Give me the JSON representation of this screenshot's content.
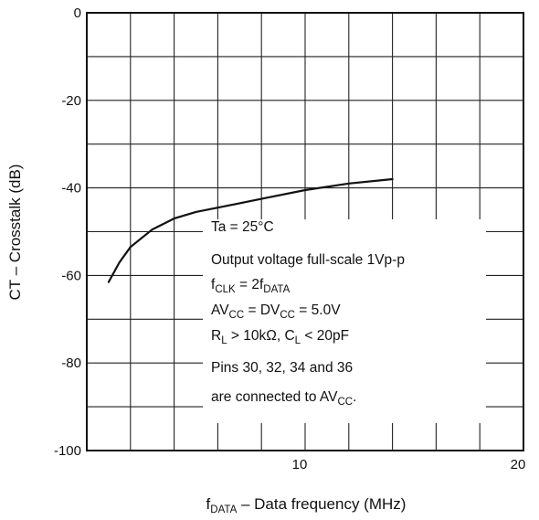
{
  "chart_data": {
    "type": "line",
    "title": "",
    "xlabel": {
      "main": "f",
      "sub": "DATA",
      "rest": " – Data frequency (MHz)"
    },
    "ylabel": "CT – Crosstalk (dB)",
    "xlim": [
      0,
      20
    ],
    "ylim": [
      -100,
      0
    ],
    "x_ticks": [
      {
        "value": 10,
        "label": "10"
      },
      {
        "value": 20,
        "label": "20"
      }
    ],
    "y_ticks": [
      {
        "value": 0,
        "label": "0"
      },
      {
        "value": -20,
        "label": "-20"
      },
      {
        "value": -40,
        "label": "-40"
      },
      {
        "value": -60,
        "label": "-60"
      },
      {
        "value": -80,
        "label": "-80"
      },
      {
        "value": -100,
        "label": "-100"
      }
    ],
    "grid": true,
    "series": [
      {
        "x": [
          1.0,
          1.5,
          2.0,
          3.0,
          4.0,
          5.0,
          6.0,
          8.0,
          10.0,
          12.0,
          14.0
        ],
        "y": [
          -61.5,
          -57.0,
          -53.5,
          -49.5,
          -47.0,
          -45.5,
          -44.5,
          -42.5,
          -40.5,
          -39.0,
          -38.0
        ]
      }
    ],
    "annotations": [
      [
        {
          "t": "Ta = 25°C"
        }
      ],
      [
        {
          "t": "Output voltage full-scale 1Vp-p"
        }
      ],
      [
        {
          "t": "f"
        },
        {
          "t": "CLK",
          "sub": true
        },
        {
          "t": " = 2f"
        },
        {
          "t": "DATA",
          "sub": true
        }
      ],
      [
        {
          "t": "AV"
        },
        {
          "t": "CC",
          "sub": true
        },
        {
          "t": " = DV"
        },
        {
          "t": "CC",
          "sub": true
        },
        {
          "t": " = 5.0V"
        }
      ],
      [
        {
          "t": "R"
        },
        {
          "t": "L",
          "sub": true
        },
        {
          "t": " > 10kΩ, C"
        },
        {
          "t": "L",
          "sub": true
        },
        {
          "t": " < 20pF"
        }
      ],
      [
        {
          "t": "Pins 30, 32, 34 and 36"
        }
      ],
      [
        {
          "t": "are connected to AV"
        },
        {
          "t": "CC",
          "sub": true
        },
        {
          "t": "."
        }
      ]
    ]
  }
}
